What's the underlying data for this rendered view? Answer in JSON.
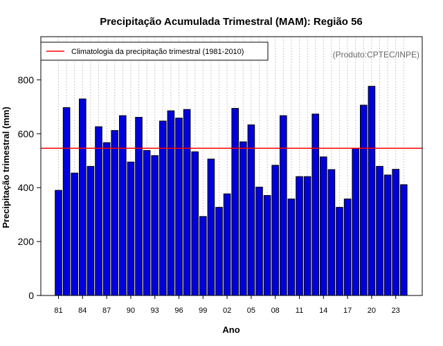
{
  "chart_data": {
    "type": "bar",
    "title": "Precipitação Acumulada Trimestral (MAM): Região 56",
    "xlabel": "Ano",
    "ylabel": "Precipitação trimestral (mm)",
    "ylim": [
      0,
      960
    ],
    "yticks": [
      0,
      200,
      400,
      600,
      800
    ],
    "grid": "vertical dotted",
    "categories": [
      "81",
      "82",
      "83",
      "84",
      "85",
      "86",
      "87",
      "88",
      "89",
      "90",
      "91",
      "92",
      "93",
      "94",
      "95",
      "96",
      "97",
      "98",
      "99",
      "00",
      "01",
      "02",
      "03",
      "04",
      "05",
      "06",
      "07",
      "08",
      "09",
      "10",
      "11",
      "12",
      "13",
      "14",
      "15",
      "16",
      "17",
      "18",
      "19",
      "20",
      "21",
      "22",
      "23",
      "24"
    ],
    "x_tick_labels": [
      "81",
      "84",
      "87",
      "90",
      "93",
      "96",
      "99",
      "02",
      "05",
      "08",
      "11",
      "14",
      "17",
      "20",
      "23"
    ],
    "values": [
      390,
      697,
      454,
      729,
      479,
      626,
      567,
      612,
      667,
      495,
      661,
      538,
      519,
      647,
      685,
      658,
      690,
      533,
      293,
      506,
      327,
      377,
      694,
      570,
      633,
      402,
      371,
      483,
      667,
      358,
      441,
      441,
      673,
      514,
      467,
      327,
      358,
      546,
      706,
      776,
      479,
      447,
      468,
      411
    ],
    "bar_color": "#0000dd",
    "reference_line": {
      "label": "Climatologia da precipitação trimestral (1981-2010)",
      "value": 546,
      "color": "#ff0000"
    },
    "legend_position": "top-left",
    "credit": "(Produto:CPTEC/INPE)"
  }
}
